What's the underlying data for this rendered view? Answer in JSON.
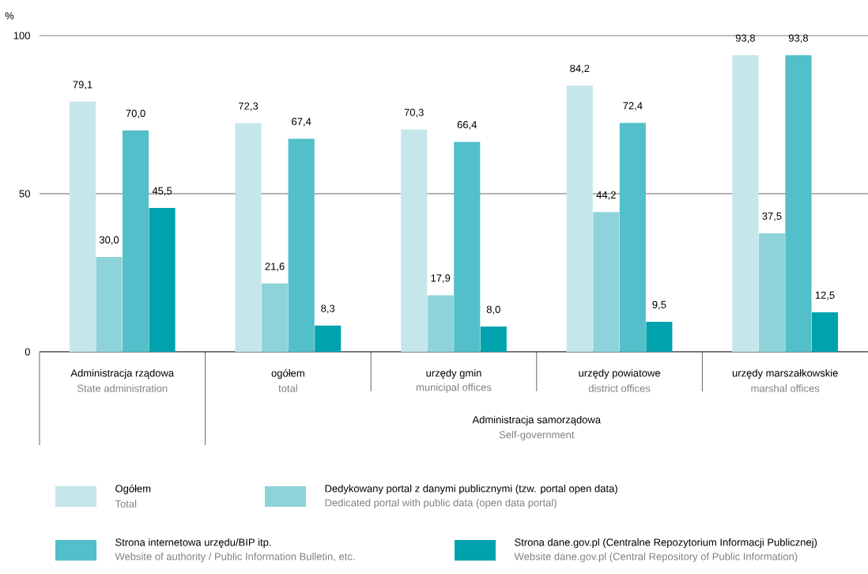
{
  "chart_data": {
    "type": "bar",
    "ylabel": "%",
    "categories": [
      "Administracja rządowa",
      "ogółem",
      "urzędy gmin",
      "urzędy powiatowe",
      "urzędy marszałkowskie"
    ],
    "series": [
      {
        "name": "Ogółem",
        "color": "#c5e6ea",
        "values": [
          79.1,
          72.3,
          70.3,
          84.2,
          93.8
        ],
        "value_labels": [
          "79,1",
          "72,3",
          "70,3",
          "84,2",
          "93,8"
        ]
      },
      {
        "name": "Dedykowany portal z danymi publicznymi (tzw. portal open data)",
        "color": "#8fd3da",
        "values": [
          30.0,
          21.6,
          17.9,
          44.2,
          37.5
        ],
        "value_labels": [
          "30,0",
          "21,6",
          "17,9",
          "44,2",
          "37,5"
        ]
      },
      {
        "name": "Strona internetowa urzędu/BIP itp.",
        "color": "#52bfca",
        "values": [
          70.0,
          67.4,
          66.4,
          72.4,
          93.8
        ],
        "value_labels": [
          "70,0",
          "67,4",
          "66,4",
          "72,4",
          "93,8"
        ]
      },
      {
        "name": "Strona dane.gov.pl (Centralne Repozytorium Informacji Publicznej)",
        "color": "#00a3ad",
        "values": [
          45.5,
          8.3,
          8.0,
          9.5,
          12.5
        ],
        "value_labels": [
          "45,5",
          "8,3",
          "8,0",
          "9,5",
          "12,5"
        ]
      }
    ],
    "ylim": [
      0,
      100
    ],
    "yticks": [
      0,
      50,
      100
    ],
    "grid": "y",
    "legend": "bottom",
    "annotations": [
      "State administration",
      "total",
      "municipal offices",
      "district offices",
      "marshal offices",
      "Administracja samorządowa",
      "Self-government",
      "Total",
      "Dedicated portal with public data (open data portal)",
      "Website of authority / Public  Information  Bulletin, etc.",
      "Website dane.gov.pl (Central Repository of Public Information)"
    ]
  }
}
